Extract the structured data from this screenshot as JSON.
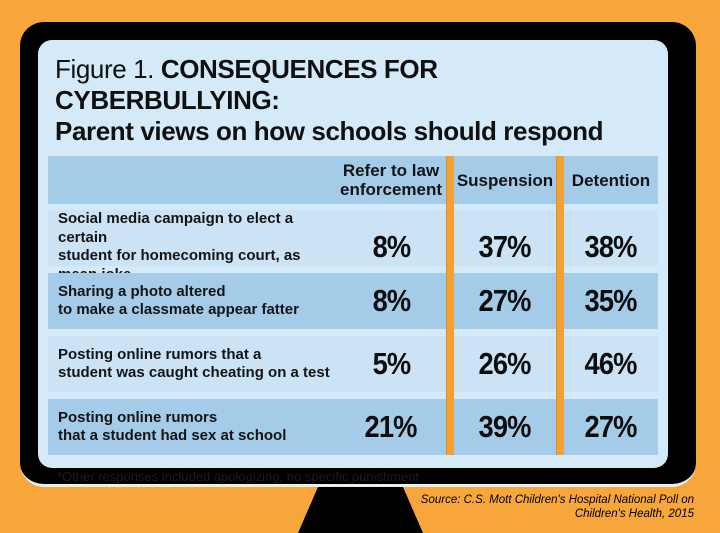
{
  "figure": {
    "title_prefix": "Figure 1.",
    "title_main": " CONSEQUENCES FOR CYBERBULLYING:",
    "title_sub": "Parent views on how schools should respond"
  },
  "table": {
    "headers": [
      "Refer to law enforcement",
      "Suspension",
      "Detention"
    ],
    "rows": [
      {
        "label1": "Social media campaign to elect a certain",
        "label2": "student for homecoming court, as mean joke",
        "v1": "8%",
        "v2": "37%",
        "v3": "38%"
      },
      {
        "label1": "Sharing a photo altered",
        "label2": "to make a classmate appear fatter",
        "v1": "8%",
        "v2": "27%",
        "v3": "35%"
      },
      {
        "label1": "Posting online rumors that a",
        "label2": "student was caught cheating on a test",
        "v1": "5%",
        "v2": "26%",
        "v3": "46%"
      },
      {
        "label1": "Posting online rumors",
        "label2": "that a student had sex at school",
        "v1": "21%",
        "v2": "39%",
        "v3": "27%"
      }
    ]
  },
  "footnote": "*Other responses included apologizing, no specific punishment",
  "source": {
    "line1": "Source: C.S. Mott Children's Hospital National Poll on",
    "line2": "Children's Health, 2015"
  },
  "colors": {
    "background_orange": "#F6A63B",
    "divider_orange": "#F2A137",
    "monitor_black": "#000000",
    "screen_light_blue": "#D5EAF9",
    "band_dark_blue": "#A4CCE9",
    "band_light_blue": "#CBE3F5",
    "text_black": "#111111"
  },
  "chart_data": {
    "type": "table",
    "title": "Figure 1. CONSEQUENCES FOR CYBERBULLYING: Parent views on how schools should respond",
    "columns": [
      "Refer to law enforcement",
      "Suspension",
      "Detention"
    ],
    "units": "percent",
    "rows": [
      {
        "scenario": "Social media campaign to elect a certain student for homecoming court, as mean joke",
        "refer_to_law_enforcement": 8,
        "suspension": 37,
        "detention": 38
      },
      {
        "scenario": "Sharing a photo altered to make a classmate appear fatter",
        "refer_to_law_enforcement": 8,
        "suspension": 27,
        "detention": 35
      },
      {
        "scenario": "Posting online rumors that a student was caught cheating on a test",
        "refer_to_law_enforcement": 5,
        "suspension": 26,
        "detention": 46
      },
      {
        "scenario": "Posting online rumors that a student had sex at school",
        "refer_to_law_enforcement": 21,
        "suspension": 39,
        "detention": 27
      }
    ],
    "footnote": "*Other responses included apologizing, no specific punishment",
    "source": "Source: C.S. Mott Children's Hospital National Poll on Children's Health, 2015"
  }
}
